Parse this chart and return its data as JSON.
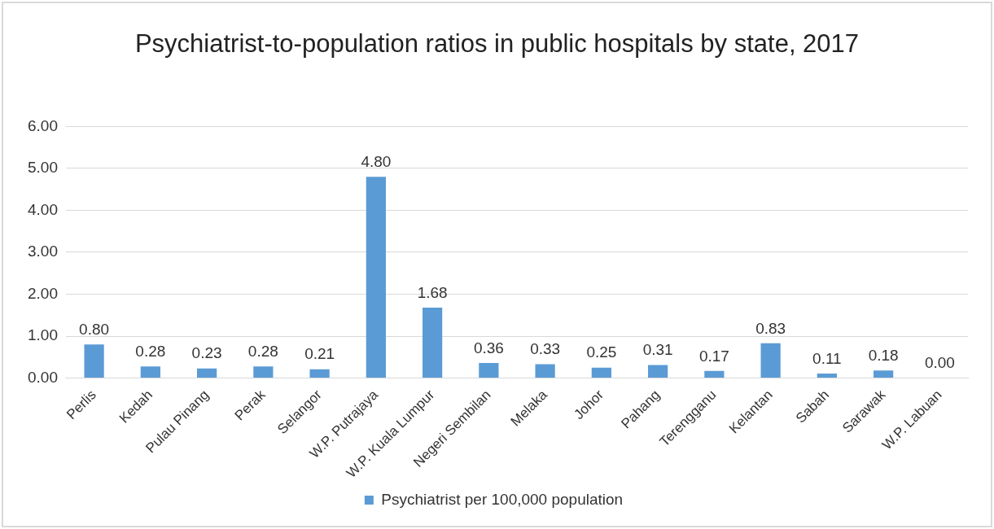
{
  "chart_data": {
    "type": "bar",
    "title": "Psychiatrist-to-population ratios in public hospitals by state, 2017",
    "categories": [
      "Perlis",
      "Kedah",
      "Pulau Pinang",
      "Perak",
      "Selangor",
      "W.P. Putrajaya",
      "W.P. Kuala Lumpur",
      "Negeri Sembilan",
      "Melaka",
      "Johor",
      "Pahang",
      "Terengganu",
      "Kelantan",
      "Sabah",
      "Sarawak",
      "W.P. Labuan"
    ],
    "series": [
      {
        "name": "Psychiatrist per 100,000 population",
        "color": "#5b9bd5",
        "values": [
          0.8,
          0.28,
          0.23,
          0.28,
          0.21,
          4.8,
          1.68,
          0.36,
          0.33,
          0.25,
          0.31,
          0.17,
          0.83,
          0.11,
          0.18,
          0
        ],
        "value_labels": [
          "0.80",
          "0.28",
          "0.23",
          "0.28",
          "0.21",
          "4.80",
          "1.68",
          "0.36",
          "0.33",
          "0.25",
          "0.31",
          "0.17",
          "0.83",
          "0.11",
          "0.18",
          "0.00"
        ]
      }
    ],
    "ylim": [
      0,
      6
    ],
    "yticks": [
      {
        "value": 0,
        "label": "0.00"
      },
      {
        "value": 1,
        "label": "1.00"
      },
      {
        "value": 2,
        "label": "2.00"
      },
      {
        "value": 3,
        "label": "3.00"
      },
      {
        "value": 4,
        "label": "4.00"
      },
      {
        "value": 5,
        "label": "5.00"
      },
      {
        "value": 6,
        "label": "6.00"
      }
    ],
    "grid": "y",
    "legend": "bottom"
  }
}
